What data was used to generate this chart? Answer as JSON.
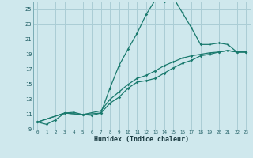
{
  "xlabel": "Humidex (Indice chaleur)",
  "bg_color": "#cfe8ed",
  "grid_color": "#aacdd5",
  "line_color": "#1a7a6e",
  "xlim": [
    -0.5,
    23.5
  ],
  "ylim": [
    9,
    26
  ],
  "yticks": [
    9,
    11,
    13,
    15,
    17,
    19,
    21,
    23,
    25
  ],
  "xticks": [
    0,
    1,
    2,
    3,
    4,
    5,
    6,
    7,
    8,
    9,
    10,
    11,
    12,
    13,
    14,
    15,
    16,
    17,
    18,
    19,
    20,
    21,
    22,
    23
  ],
  "series1_x": [
    0,
    1,
    2,
    3,
    4,
    5,
    6,
    7,
    8,
    9,
    10,
    11,
    12,
    13,
    14,
    15,
    16,
    17,
    18,
    19,
    20,
    21,
    22,
    23
  ],
  "series1_y": [
    10.0,
    9.7,
    10.3,
    11.2,
    11.3,
    11.0,
    10.9,
    11.2,
    14.5,
    17.5,
    19.7,
    21.8,
    24.3,
    26.2,
    26.0,
    26.5,
    24.5,
    22.5,
    20.3,
    20.3,
    20.5,
    20.3,
    19.3,
    19.3
  ],
  "series2_x": [
    0,
    3,
    5,
    7,
    8,
    9,
    10,
    11,
    12,
    13,
    14,
    15,
    16,
    17,
    18,
    19,
    20,
    21,
    22,
    23
  ],
  "series2_y": [
    10.0,
    11.2,
    11.0,
    11.2,
    12.5,
    13.3,
    14.5,
    15.3,
    15.5,
    15.8,
    16.5,
    17.2,
    17.8,
    18.2,
    18.8,
    19.0,
    19.3,
    19.5,
    19.3,
    19.3
  ],
  "series3_x": [
    0,
    3,
    5,
    7,
    8,
    9,
    10,
    11,
    12,
    13,
    14,
    15,
    16,
    17,
    18,
    19,
    20,
    21,
    22,
    23
  ],
  "series3_y": [
    10.0,
    11.2,
    11.0,
    11.5,
    13.0,
    14.0,
    15.0,
    15.8,
    16.2,
    16.8,
    17.5,
    18.0,
    18.5,
    18.8,
    19.0,
    19.2,
    19.3,
    19.5,
    19.3,
    19.3
  ]
}
